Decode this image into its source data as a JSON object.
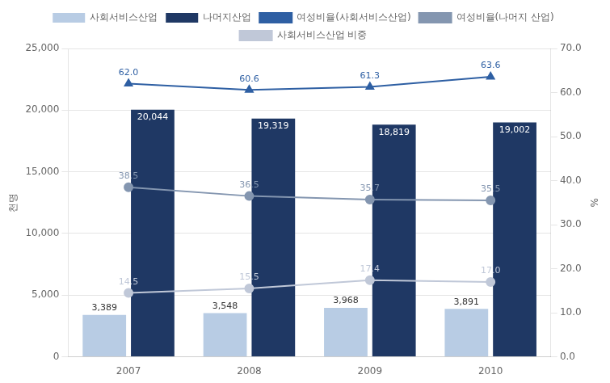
{
  "chart_data": {
    "type": "bar",
    "categories": [
      "2007",
      "2008",
      "2009",
      "2010"
    ],
    "ylabel": "천명",
    "y2label": "%",
    "ylim": [
      0,
      25000
    ],
    "yticks": [
      0,
      {
        "value": 5000,
        "label": "5,000"
      },
      {
        "value": 10000,
        "label": "10,000"
      },
      {
        "value": 15000,
        "label": "15,000"
      },
      {
        "value": 20000,
        "label": "20,000"
      },
      {
        "value": 25000,
        "label": "25,000"
      }
    ],
    "y2lim": [
      0,
      70
    ],
    "y2ticks": [
      {
        "value": 0,
        "label": "0.0"
      },
      {
        "value": 10,
        "label": "10.0"
      },
      {
        "value": 20,
        "label": "20.0"
      },
      {
        "value": 30,
        "label": "30.0"
      },
      {
        "value": 40,
        "label": "40.0"
      },
      {
        "value": 50,
        "label": "50.0"
      },
      {
        "value": 60,
        "label": "60.0"
      },
      {
        "value": 70,
        "label": "70.0"
      }
    ],
    "grid": true,
    "legend": "top",
    "data_labels": true,
    "series": [
      {
        "name": "사회서비스산업",
        "type": "bar",
        "color": "#b8cce4",
        "values": [
          3389,
          3548,
          3968,
          3891
        ],
        "value_labels": [
          "3,389",
          "3,548",
          "3,968",
          "3,891"
        ]
      },
      {
        "name": "나머지산업",
        "type": "bar",
        "color": "#1f3864",
        "values": [
          20044,
          19319,
          18819,
          19002
        ],
        "value_labels": [
          "20,044",
          "19,319",
          "18,819",
          "19,002"
        ]
      },
      {
        "name": "여성비율(사회서비스산업)",
        "type": "line",
        "axis": "y2",
        "marker": "triangle",
        "color": "#2e5fa3",
        "values": [
          62.0,
          60.6,
          61.3,
          63.6
        ],
        "value_labels": [
          "62.0",
          "60.6",
          "61.3",
          "63.6"
        ]
      },
      {
        "name": "여성비율(나머지 산업)",
        "type": "line",
        "axis": "y2",
        "marker": "circle",
        "color": "#8496b0",
        "values": [
          38.5,
          36.5,
          35.7,
          35.5
        ],
        "value_labels": [
          "38.5",
          "36.5",
          "35.7",
          "35.5"
        ]
      },
      {
        "name": "사회서비스산업 비중",
        "type": "line",
        "axis": "y2",
        "marker": "circle",
        "color": "#c0c8d8",
        "values": [
          14.5,
          15.5,
          17.4,
          17.0
        ],
        "value_labels": [
          "14.5",
          "15.5",
          "17.4",
          "17.0"
        ]
      }
    ]
  }
}
